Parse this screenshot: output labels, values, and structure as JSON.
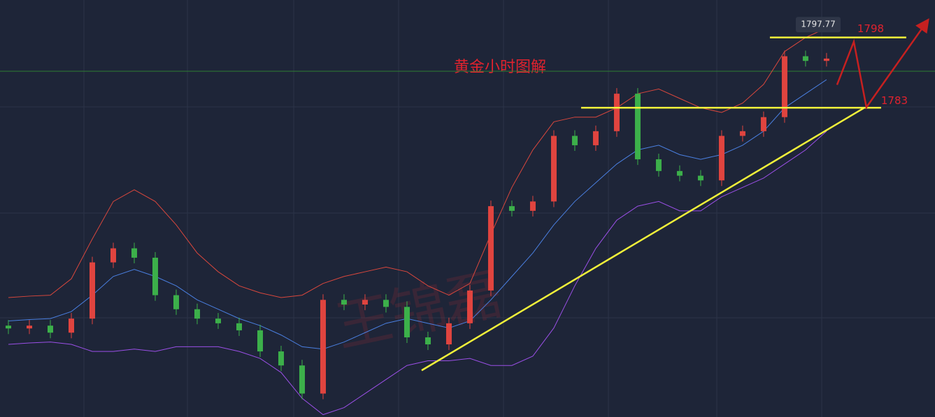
{
  "chart_data": {
    "type": "candlestick",
    "title": "黄金小时图解",
    "watermark": "王锦磊",
    "xlim": [
      -0.4,
      44.17
    ],
    "ylim": [
      1717,
      1806
    ],
    "open": [
      1736.5,
      1735.9,
      1736.5,
      1735,
      1738,
      1750,
      1753,
      1751,
      1743,
      1740,
      1738,
      1737,
      1735.5,
      1731,
      1728,
      1722,
      1742,
      1741,
      1742,
      1740.5,
      1734,
      1732.5,
      1737,
      1744,
      1762,
      1761,
      1763,
      1777,
      1775,
      1778,
      1786,
      1772,
      1769.5,
      1768.5,
      1767.5,
      1777,
      1778,
      1781,
      1794,
      1793
    ],
    "high": [
      1737.7,
      1737.7,
      1737.7,
      1739.2,
      1751.2,
      1754.2,
      1754.2,
      1752.2,
      1744.2,
      1741.2,
      1739.2,
      1738.2,
      1736.7,
      1732.2,
      1729.2,
      1743.2,
      1743.2,
      1743.2,
      1743.2,
      1741.7,
      1735.2,
      1738.2,
      1745.2,
      1763.2,
      1763.2,
      1764.2,
      1778.2,
      1778.2,
      1779.2,
      1787.2,
      1787.2,
      1773.2,
      1770.7,
      1769.7,
      1778.2,
      1779.2,
      1782.2,
      1795.2,
      1795.2,
      1794.7
    ],
    "low": [
      1734.7,
      1734.7,
      1733.8,
      1733.8,
      1736.8,
      1748.8,
      1749.8,
      1741.8,
      1738.8,
      1736.8,
      1735.8,
      1734.3,
      1729.8,
      1726.8,
      1720.8,
      1720.8,
      1739.8,
      1739.8,
      1739.3,
      1732.8,
      1731.3,
      1731.3,
      1735.8,
      1742.8,
      1759.8,
      1759.8,
      1761.8,
      1773.8,
      1773.8,
      1776.8,
      1770.8,
      1768.3,
      1767.3,
      1766.3,
      1766.3,
      1775.8,
      1776.8,
      1779.8,
      1791.8,
      1791.8
    ],
    "close": [
      1735.9,
      1736.5,
      1735,
      1738,
      1750,
      1753,
      1751,
      1743,
      1740,
      1738,
      1737,
      1735.5,
      1731,
      1728,
      1722,
      1742,
      1741,
      1742,
      1740.5,
      1734,
      1732.5,
      1737,
      1744,
      1762,
      1761,
      1763,
      1777,
      1775,
      1778,
      1786,
      1772,
      1769.5,
      1768.5,
      1767.5,
      1777,
      1778,
      1781,
      1794,
      1793,
      1793.5
    ],
    "up_color": "#e0443f",
    "down_color": "#3cb04a",
    "bands": [
      {
        "color": "#d9473d",
        "values": [
          1742.5,
          1742.8,
          1743,
          1746.5,
          1755,
          1763,
          1765.5,
          1763,
          1758,
          1752,
          1748,
          1745,
          1743.5,
          1742.5,
          1743,
          1745.5,
          1747,
          1748,
          1749,
          1748,
          1745,
          1743,
          1745.5,
          1756,
          1766,
          1774,
          1780,
          1781,
          1781,
          1783,
          1786,
          1787,
          1785,
          1783,
          1782,
          1784,
          1788,
          1795,
          1798,
          1800
        ]
      },
      {
        "color": "#4a7fe0",
        "values": [
          1737.5,
          1737.8,
          1738,
          1739.5,
          1743,
          1747,
          1748.5,
          1747,
          1745,
          1742,
          1740,
          1738,
          1736.5,
          1734.5,
          1732,
          1731.5,
          1733,
          1735,
          1737,
          1738,
          1737,
          1736,
          1737.5,
          1742,
          1747,
          1752,
          1758,
          1763,
          1767,
          1771,
          1774,
          1775,
          1773,
          1772,
          1773,
          1775,
          1778,
          1783,
          1786,
          1789
        ]
      },
      {
        "color": "#9a4fe6",
        "values": [
          1732.5,
          1732.8,
          1733,
          1732.5,
          1731,
          1731,
          1731.5,
          1731,
          1732,
          1732,
          1732,
          1731,
          1729.5,
          1726.5,
          1721,
          1717.5,
          1719,
          1722,
          1725,
          1728,
          1729,
          1729,
          1729.5,
          1728,
          1728,
          1730,
          1736,
          1745,
          1753,
          1759,
          1762,
          1763,
          1761,
          1761,
          1764,
          1766,
          1768,
          1771,
          1774,
          1778
        ]
      }
    ],
    "price_line": 1790.8,
    "price_line_color": "#2e7d32",
    "high_label": 1797.77,
    "levels": [
      {
        "value": 1798,
        "x": [
          36.3,
          42.8
        ]
      },
      {
        "value": 1783,
        "x": [
          27.3,
          41.6
        ]
      }
    ],
    "trendline": {
      "x": [
        19.7,
        40.8
      ],
      "y": [
        1726.95,
        1783
      ]
    },
    "line_color": "#f2f23a",
    "arrow": {
      "x": [
        39.5,
        40.3,
        40.9,
        43.8
      ],
      "y": [
        1787.9,
        1797.1,
        1783.1,
        1801.5
      ]
    },
    "arrow_color": "#c62020"
  }
}
